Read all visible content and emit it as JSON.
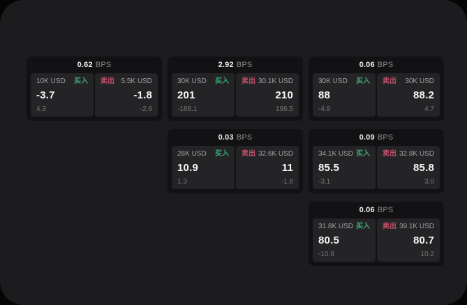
{
  "labels": {
    "bps_suffix": "BPS",
    "buy": "买入",
    "sell": "卖出"
  },
  "colors": {
    "outer_bg": "#050505",
    "screen_bg": "#1c1c1e",
    "card_bg": "#121214",
    "tile_bg": "#242427",
    "buy_green": "#3fa873",
    "sell_red": "#c4506a"
  },
  "cards": [
    {
      "bps": "0.62",
      "buy": {
        "notional": "10K USD",
        "price": "-3.7",
        "sub": "4.3"
      },
      "sell": {
        "notional": "5.5K USD",
        "price": "-1.8",
        "sub": "-2.6"
      }
    },
    {
      "bps": "2.92",
      "buy": {
        "notional": "30K USD",
        "price": "201",
        "sub": "-188.1"
      },
      "sell": {
        "notional": "30.1K USD",
        "price": "210",
        "sub": "196.5"
      }
    },
    {
      "bps": "0.06",
      "buy": {
        "notional": "30K USD",
        "price": "88",
        "sub": "-4.9"
      },
      "sell": {
        "notional": "30K USD",
        "price": "88.2",
        "sub": "4.7"
      }
    },
    {
      "bps": "0.03",
      "buy": {
        "notional": "28K USD",
        "price": "10.9",
        "sub": "1.3"
      },
      "sell": {
        "notional": "32.6K USD",
        "price": "11",
        "sub": "-1.8"
      }
    },
    {
      "bps": "0.09",
      "buy": {
        "notional": "34.1K USD",
        "price": "85.5",
        "sub": "-3.1"
      },
      "sell": {
        "notional": "32.8K USD",
        "price": "85.8",
        "sub": "3.0"
      }
    },
    {
      "bps": "0.06",
      "buy": {
        "notional": "31.8K USD",
        "price": "80.5",
        "sub": "-10.8"
      },
      "sell": {
        "notional": "39.1K USD",
        "price": "80.7",
        "sub": "10.2"
      }
    }
  ]
}
